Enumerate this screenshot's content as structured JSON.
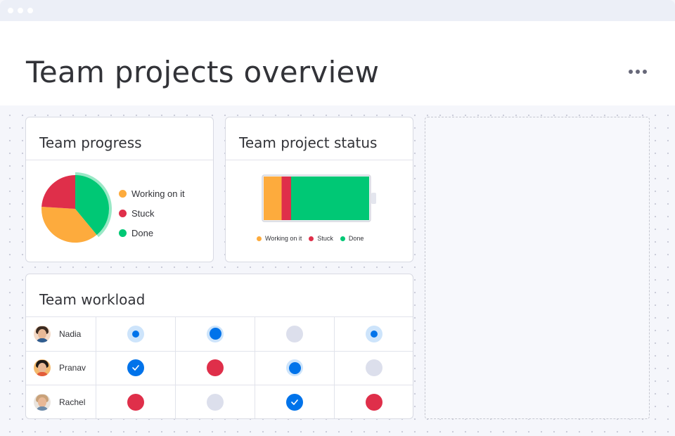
{
  "page": {
    "title": "Team projects overview"
  },
  "colors": {
    "working": "#fdab3d",
    "stuck": "#df2f4a",
    "done": "#00c875",
    "progress_blue": "#0073ea"
  },
  "cards": {
    "progress": {
      "title": "Team progress",
      "legend": [
        "Working on it",
        "Stuck",
        "Done"
      ]
    },
    "status": {
      "title": "Team project status",
      "legend": [
        "Working on it",
        "Stuck",
        "Done"
      ]
    },
    "workload": {
      "title": "Team workload",
      "people": [
        {
          "name": "Nadia",
          "statuses": [
            "progress-sm",
            "progress-lg",
            "empty",
            "progress-sm"
          ]
        },
        {
          "name": "Pranav",
          "statuses": [
            "done",
            "stuck",
            "progress-lg",
            "empty"
          ]
        },
        {
          "name": "Rachel",
          "statuses": [
            "stuck",
            "empty",
            "done",
            "stuck"
          ]
        }
      ]
    }
  },
  "chart_data": [
    {
      "type": "pie",
      "categories": [
        "Working on it",
        "Stuck",
        "Done"
      ],
      "values": [
        37,
        24,
        39
      ],
      "colors": [
        "#fdab3d",
        "#df2f4a",
        "#00c875"
      ],
      "highlight": "Done"
    },
    {
      "type": "bar",
      "orientation": "horizontal-stacked",
      "categories": [
        "Working on it",
        "Stuck",
        "Done"
      ],
      "values": [
        17,
        9,
        74
      ],
      "colors": [
        "#fdab3d",
        "#df2f4a",
        "#00c875"
      ]
    }
  ],
  "icons": {
    "more": "more-horizontal-icon",
    "check": "check-icon"
  }
}
